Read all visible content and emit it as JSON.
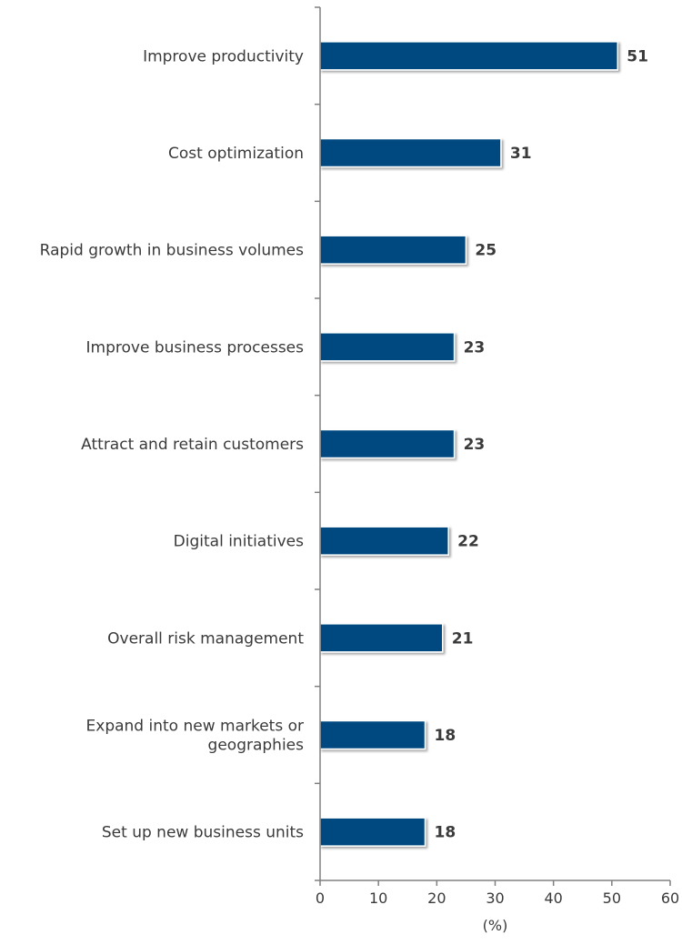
{
  "chart_data": {
    "type": "bar",
    "orientation": "horizontal",
    "categories": [
      "Improve productivity",
      "Cost optimization",
      "Rapid growth in business volumes",
      "Improve business processes",
      "Attract and retain customers",
      "Digital initiatives",
      "Overall risk management",
      "Expand into new markets or geographies",
      "Set up new business units"
    ],
    "values": [
      51,
      31,
      25,
      23,
      23,
      22,
      21,
      18,
      18
    ],
    "value_labels": [
      "51",
      "31",
      "25",
      "23",
      "23",
      "22",
      "21",
      "18",
      "18"
    ],
    "xlabel": "(%)",
    "ylabel": "",
    "xlim": [
      0,
      60
    ],
    "xticks": [
      0,
      10,
      20,
      30,
      40,
      50,
      60
    ],
    "xtick_labels": [
      "0",
      "10",
      "20",
      "30",
      "40",
      "50",
      "60"
    ],
    "bar_color": "#004A80",
    "grid": false,
    "legend": "none"
  }
}
